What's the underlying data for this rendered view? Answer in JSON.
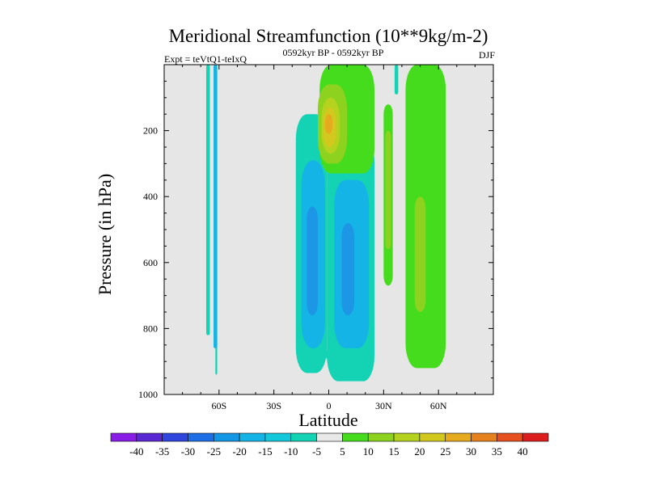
{
  "chart_data": {
    "type": "contour",
    "title": "Meridional Streamfunction (10**9kg/m-2)",
    "subtitle_left": "Expt = teVtQ1-teIxQ",
    "subtitle_center": "0592kyr BP - 0592kyr BP",
    "season": "DJF",
    "xlabel": "Latitude",
    "ylabel": "Pressure (in hPa)",
    "xlim": [
      -90,
      90
    ],
    "ylim": [
      0,
      1000
    ],
    "x_ticks": [
      {
        "value": -60,
        "label": "60S"
      },
      {
        "value": -30,
        "label": "30S"
      },
      {
        "value": 0,
        "label": "0"
      },
      {
        "value": 30,
        "label": "30N"
      },
      {
        "value": 60,
        "label": "60N"
      }
    ],
    "y_ticks": [
      {
        "value": 200,
        "label": "200"
      },
      {
        "value": 400,
        "label": "400"
      },
      {
        "value": 600,
        "label": "600"
      },
      {
        "value": 800,
        "label": "800"
      },
      {
        "value": 1000,
        "label": "1000"
      }
    ],
    "colorbar": {
      "labels": [
        "-40",
        "-35",
        "-30",
        "-25",
        "-20",
        "-15",
        "-10",
        "-5",
        "5",
        "10",
        "15",
        "20",
        "25",
        "30",
        "35",
        "40"
      ],
      "colors": [
        "#8a1ee6",
        "#5a28d2",
        "#2e46dc",
        "#1e6ee6",
        "#1496e6",
        "#14b4e6",
        "#14c8dc",
        "#14d2b4",
        "#e8e8e8",
        "#46dc1e",
        "#8cd21e",
        "#b4d21e",
        "#d2c81e",
        "#e6aa1e",
        "#e6821e",
        "#e6501e",
        "#dc1e1e"
      ]
    },
    "bands": [
      {
        "name": "-5 to -10",
        "color": "#14d2b4",
        "regions": [
          {
            "type": "strip",
            "lat_range": [
              -67,
              -65
            ],
            "p_range": [
              0,
              820
            ]
          },
          {
            "type": "strip",
            "lat_range": [
              -62,
              -61
            ],
            "p_range": [
              0,
              940
            ]
          },
          {
            "type": "cell",
            "lat_range": [
              -18,
              -1
            ],
            "p_range": [
              150,
              935
            ]
          },
          {
            "type": "cell",
            "lat_range": [
              -1,
              25
            ],
            "p_range": [
              220,
              960
            ]
          },
          {
            "type": "strip",
            "lat_range": [
              36,
              38
            ],
            "p_range": [
              0,
              90
            ]
          },
          {
            "type": "spot",
            "lat": 0,
            "p": 880
          }
        ]
      },
      {
        "name": "-10 to -20",
        "color": "#14b4e6",
        "regions": [
          {
            "type": "cell",
            "lat_range": [
              -15,
              -2
            ],
            "p_range": [
              290,
              860
            ]
          },
          {
            "type": "cell",
            "lat_range": [
              3,
              22
            ],
            "p_range": [
              350,
              860
            ]
          },
          {
            "type": "strip",
            "lat_range": [
              -63,
              -61
            ],
            "p_range": [
              0,
              860
            ]
          }
        ]
      },
      {
        "name": "-20 to -25",
        "color": "#1e96e6",
        "regions": [
          {
            "type": "cell",
            "lat_range": [
              -12,
              -6
            ],
            "p_range": [
              430,
              760
            ]
          },
          {
            "type": "cell",
            "lat_range": [
              7,
              14
            ],
            "p_range": [
              480,
              760
            ]
          }
        ]
      },
      {
        "name": "5 to 10",
        "color": "#46dc1e",
        "regions": [
          {
            "type": "cell",
            "lat_range": [
              -5,
              25
            ],
            "p_range": [
              0,
              330
            ]
          },
          {
            "type": "cell",
            "lat_range": [
              30,
              35
            ],
            "p_range": [
              120,
              670
            ]
          },
          {
            "type": "cell",
            "lat_range": [
              42,
              64
            ],
            "p_range": [
              0,
              920
            ]
          }
        ]
      },
      {
        "name": "10 to 15",
        "color": "#8cd21e",
        "regions": [
          {
            "type": "cell",
            "lat_range": [
              -6,
              10
            ],
            "p_range": [
              60,
              300
            ]
          },
          {
            "type": "cell",
            "lat_range": [
              31,
              34
            ],
            "p_range": [
              200,
              560
            ]
          },
          {
            "type": "cell",
            "lat_range": [
              47,
              53
            ],
            "p_range": [
              400,
              750
            ]
          }
        ]
      },
      {
        "name": "15 to 20",
        "color": "#b4d21e",
        "regions": [
          {
            "type": "cell",
            "lat_range": [
              -4,
              6
            ],
            "p_range": [
              100,
              270
            ]
          }
        ]
      },
      {
        "name": "20 to 25",
        "color": "#d2c81e",
        "regions": [
          {
            "type": "cell",
            "lat_range": [
              -3,
              4
            ],
            "p_range": [
              130,
              250
            ]
          }
        ]
      },
      {
        "name": "25 to 30",
        "color": "#e6aa1e",
        "regions": [
          {
            "type": "cell",
            "lat_range": [
              -2,
              2
            ],
            "p_range": [
              150,
              210
            ]
          }
        ]
      }
    ]
  }
}
